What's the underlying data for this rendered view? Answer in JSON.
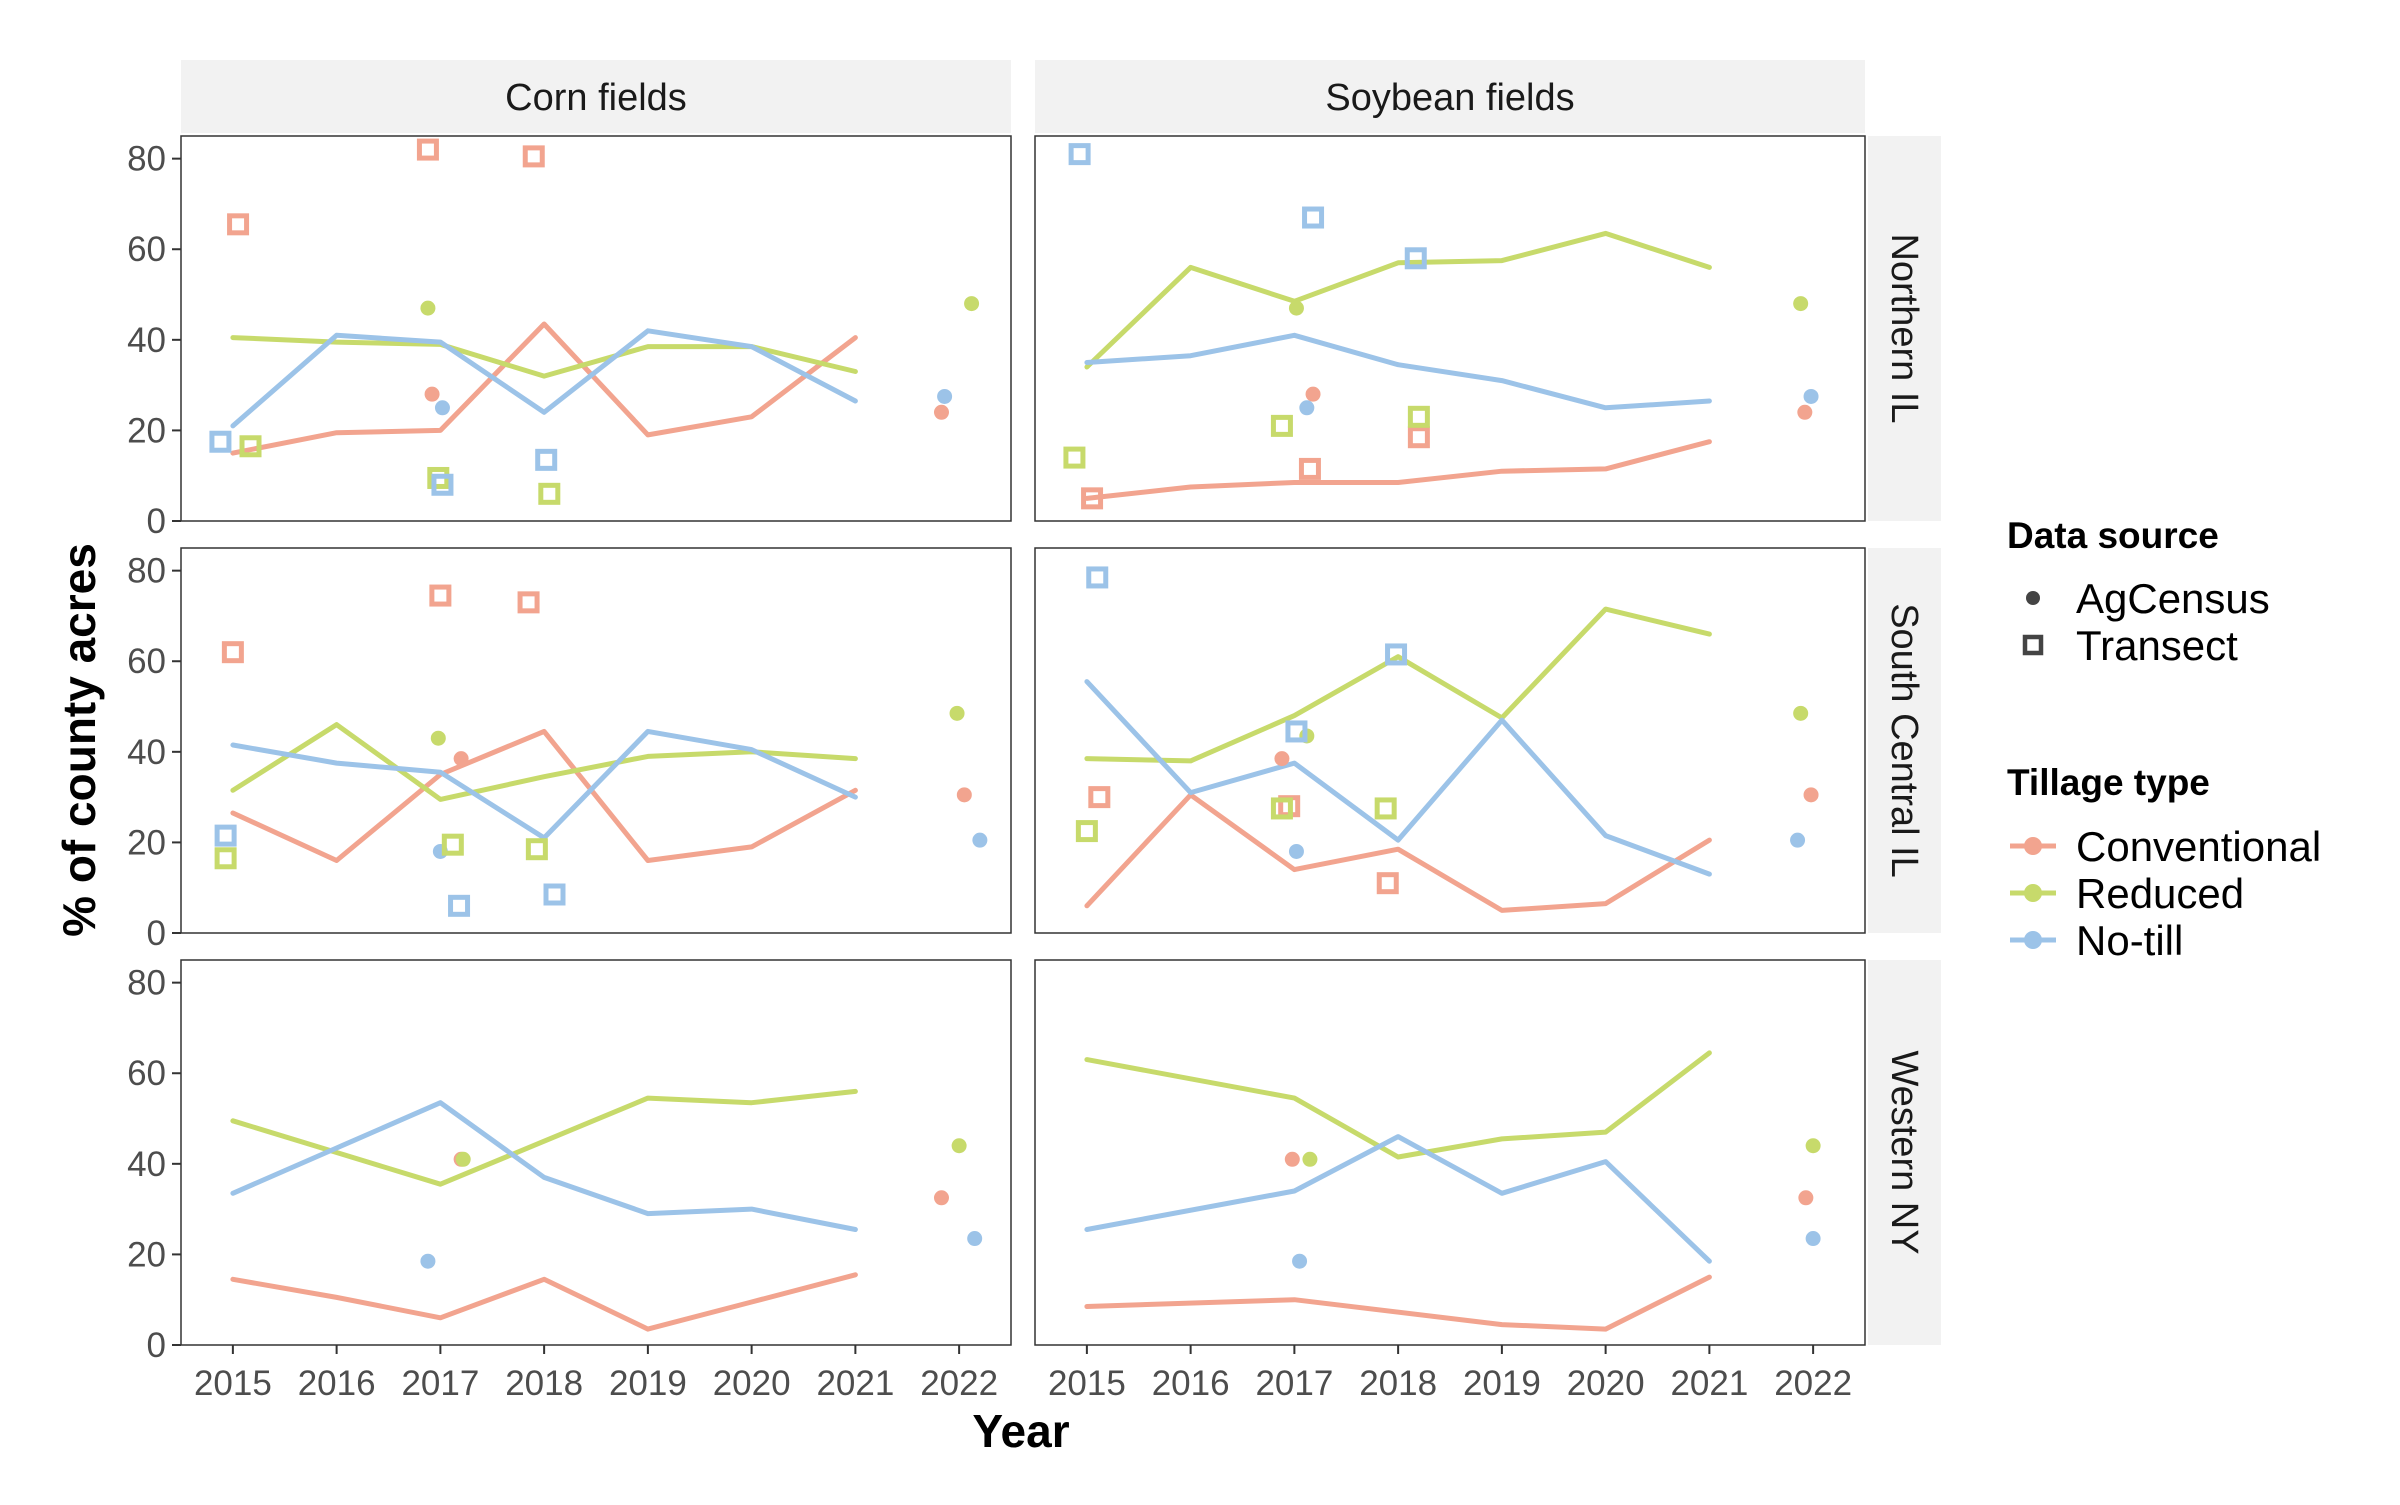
{
  "colors": {
    "Conventional": "#F2A48F",
    "Reduced": "#C7DA6B",
    "No-till": "#9CC3E8"
  },
  "chart_data": {
    "type": "line",
    "xlabel": "Year",
    "ylabel": "% of county acres",
    "ylim": [
      0,
      85
    ],
    "y_ticks": [
      "0",
      "20",
      "40",
      "60",
      "80"
    ],
    "x_ticks": [
      "2015",
      "2016",
      "2017",
      "2018",
      "2019",
      "2020",
      "2021",
      "2022"
    ],
    "columns": [
      "Corn fields",
      "Soybean fields"
    ],
    "rows": [
      "Northern IL",
      "South Central IL",
      "Western NY"
    ],
    "legend": {
      "position": "right",
      "source_title": "Data source",
      "source_items": [
        "AgCensus",
        "Transect"
      ],
      "tillage_title": "Tillage type",
      "tillage_items": [
        "Conventional",
        "Reduced",
        "No-till"
      ]
    },
    "panels": [
      {
        "row": "Northern IL",
        "col": "Corn fields",
        "lines": {
          "Conventional": [
            [
              2015,
              15
            ],
            [
              2016,
              19.5
            ],
            [
              2017,
              20
            ],
            [
              2018,
              43.5
            ],
            [
              2019,
              19
            ],
            [
              2020,
              23
            ],
            [
              2021,
              40.5
            ]
          ],
          "Reduced": [
            [
              2015,
              40.5
            ],
            [
              2016,
              39.5
            ],
            [
              2017,
              39
            ],
            [
              2018,
              32
            ],
            [
              2019,
              38.5
            ],
            [
              2020,
              38.5
            ],
            [
              2021,
              33
            ]
          ],
          "No-till": [
            [
              2015,
              21
            ],
            [
              2016,
              41
            ],
            [
              2017,
              39.5
            ],
            [
              2018,
              24
            ],
            [
              2019,
              42
            ],
            [
              2020,
              38.5
            ],
            [
              2021,
              26.5
            ]
          ]
        },
        "agcensus": [
          {
            "type": "Conventional",
            "x": 2016.92,
            "y": 28
          },
          {
            "type": "Reduced",
            "x": 2016.88,
            "y": 47
          },
          {
            "type": "No-till",
            "x": 2017.02,
            "y": 25
          },
          {
            "type": "Conventional",
            "x": 2021.83,
            "y": 24
          },
          {
            "type": "Reduced",
            "x": 2022.12,
            "y": 48
          },
          {
            "type": "No-till",
            "x": 2021.86,
            "y": 27.5
          }
        ],
        "transect": [
          {
            "type": "Conventional",
            "x": 2015.05,
            "y": 65.5
          },
          {
            "type": "Reduced",
            "x": 2015.17,
            "y": 16.5
          },
          {
            "type": "No-till",
            "x": 2014.88,
            "y": 17.5
          },
          {
            "type": "Conventional",
            "x": 2016.88,
            "y": 82
          },
          {
            "type": "Reduced",
            "x": 2016.98,
            "y": 9.5
          },
          {
            "type": "No-till",
            "x": 2017.02,
            "y": 8
          },
          {
            "type": "Conventional",
            "x": 2017.9,
            "y": 80.5
          },
          {
            "type": "Reduced",
            "x": 2018.05,
            "y": 6
          },
          {
            "type": "No-till",
            "x": 2018.02,
            "y": 13.5
          }
        ]
      },
      {
        "row": "Northern IL",
        "col": "Soybean fields",
        "lines": {
          "Conventional": [
            [
              2015,
              5
            ],
            [
              2016,
              7.5
            ],
            [
              2017,
              8.5
            ],
            [
              2018,
              8.5
            ],
            [
              2019,
              11
            ],
            [
              2020,
              11.5
            ],
            [
              2021,
              17.5
            ]
          ],
          "Reduced": [
            [
              2015,
              34
            ],
            [
              2016,
              56
            ],
            [
              2017,
              48.5
            ],
            [
              2018,
              57
            ],
            [
              2019,
              57.5
            ],
            [
              2020,
              63.5
            ],
            [
              2021,
              56
            ]
          ],
          "No-till": [
            [
              2015,
              35
            ],
            [
              2016,
              36.5
            ],
            [
              2017,
              41
            ],
            [
              2018,
              34.5
            ],
            [
              2019,
              31
            ],
            [
              2020,
              25
            ],
            [
              2021,
              26.5
            ]
          ]
        },
        "agcensus": [
          {
            "type": "Conventional",
            "x": 2017.18,
            "y": 28
          },
          {
            "type": "Reduced",
            "x": 2017.02,
            "y": 47
          },
          {
            "type": "No-till",
            "x": 2017.12,
            "y": 25
          },
          {
            "type": "Conventional",
            "x": 2021.92,
            "y": 24
          },
          {
            "type": "Reduced",
            "x": 2021.88,
            "y": 48
          },
          {
            "type": "No-till",
            "x": 2021.98,
            "y": 27.5
          }
        ],
        "transect": [
          {
            "type": "Conventional",
            "x": 2015.05,
            "y": 5
          },
          {
            "type": "Reduced",
            "x": 2014.88,
            "y": 14
          },
          {
            "type": "No-till",
            "x": 2014.93,
            "y": 81
          },
          {
            "type": "Conventional",
            "x": 2017.15,
            "y": 11.5
          },
          {
            "type": "Reduced",
            "x": 2016.88,
            "y": 21
          },
          {
            "type": "No-till",
            "x": 2017.18,
            "y": 67
          },
          {
            "type": "Conventional",
            "x": 2018.2,
            "y": 18.5
          },
          {
            "type": "Reduced",
            "x": 2018.2,
            "y": 23
          },
          {
            "type": "No-till",
            "x": 2018.17,
            "y": 58
          }
        ]
      },
      {
        "row": "South Central IL",
        "col": "Corn fields",
        "lines": {
          "Conventional": [
            [
              2015,
              26.5
            ],
            [
              2016,
              16
            ],
            [
              2017,
              35
            ],
            [
              2018,
              44.5
            ],
            [
              2019,
              16
            ],
            [
              2020,
              19
            ],
            [
              2021,
              31.5
            ]
          ],
          "Reduced": [
            [
              2015,
              31.5
            ],
            [
              2016,
              46
            ],
            [
              2017,
              29.5
            ],
            [
              2018,
              34.5
            ],
            [
              2019,
              39
            ],
            [
              2020,
              40
            ],
            [
              2021,
              38.5
            ]
          ],
          "No-till": [
            [
              2015,
              41.5
            ],
            [
              2016,
              37.5
            ],
            [
              2017,
              35.5
            ],
            [
              2018,
              21
            ],
            [
              2019,
              44.5
            ],
            [
              2020,
              40.5
            ],
            [
              2021,
              30
            ]
          ]
        },
        "agcensus": [
          {
            "type": "Conventional",
            "x": 2017.2,
            "y": 38.5
          },
          {
            "type": "Reduced",
            "x": 2016.98,
            "y": 43
          },
          {
            "type": "No-till",
            "x": 2017.0,
            "y": 18
          },
          {
            "type": "Conventional",
            "x": 2022.05,
            "y": 30.5
          },
          {
            "type": "Reduced",
            "x": 2021.98,
            "y": 48.5
          },
          {
            "type": "No-till",
            "x": 2022.2,
            "y": 20.5
          }
        ],
        "transect": [
          {
            "type": "Conventional",
            "x": 2015.0,
            "y": 62
          },
          {
            "type": "Reduced",
            "x": 2014.93,
            "y": 16.5
          },
          {
            "type": "No-till",
            "x": 2014.93,
            "y": 21.5
          },
          {
            "type": "Conventional",
            "x": 2017.0,
            "y": 74.5
          },
          {
            "type": "Reduced",
            "x": 2017.12,
            "y": 19.5
          },
          {
            "type": "No-till",
            "x": 2017.18,
            "y": 6
          },
          {
            "type": "Conventional",
            "x": 2017.85,
            "y": 73
          },
          {
            "type": "Reduced",
            "x": 2017.93,
            "y": 18.5
          },
          {
            "type": "No-till",
            "x": 2018.1,
            "y": 8.5
          }
        ]
      },
      {
        "row": "South Central IL",
        "col": "Soybean fields",
        "lines": {
          "Conventional": [
            [
              2015,
              6
            ],
            [
              2016,
              30.5
            ],
            [
              2017,
              14
            ],
            [
              2018,
              18.5
            ],
            [
              2019,
              5
            ],
            [
              2020,
              6.5
            ],
            [
              2021,
              20.5
            ]
          ],
          "Reduced": [
            [
              2015,
              38.5
            ],
            [
              2016,
              38
            ],
            [
              2017,
              48
            ],
            [
              2018,
              61
            ],
            [
              2019,
              47.5
            ],
            [
              2020,
              71.5
            ],
            [
              2021,
              66
            ]
          ],
          "No-till": [
            [
              2015,
              55.5
            ],
            [
              2016,
              31
            ],
            [
              2017,
              37.5
            ],
            [
              2018,
              20.5
            ],
            [
              2019,
              47
            ],
            [
              2020,
              21.5
            ],
            [
              2021,
              13
            ]
          ]
        },
        "agcensus": [
          {
            "type": "Conventional",
            "x": 2016.88,
            "y": 38.5
          },
          {
            "type": "Reduced",
            "x": 2017.12,
            "y": 43.5
          },
          {
            "type": "No-till",
            "x": 2017.02,
            "y": 18
          },
          {
            "type": "Conventional",
            "x": 2021.98,
            "y": 30.5
          },
          {
            "type": "Reduced",
            "x": 2021.88,
            "y": 48.5
          },
          {
            "type": "No-till",
            "x": 2021.85,
            "y": 20.5
          }
        ],
        "transect": [
          {
            "type": "Conventional",
            "x": 2015.12,
            "y": 30
          },
          {
            "type": "Reduced",
            "x": 2015.0,
            "y": 22.5
          },
          {
            "type": "No-till",
            "x": 2015.1,
            "y": 78.5
          },
          {
            "type": "Conventional",
            "x": 2016.95,
            "y": 28
          },
          {
            "type": "Reduced",
            "x": 2016.88,
            "y": 27.5
          },
          {
            "type": "No-till",
            "x": 2017.02,
            "y": 44.5
          },
          {
            "type": "Conventional",
            "x": 2017.9,
            "y": 11
          },
          {
            "type": "Reduced",
            "x": 2017.88,
            "y": 27.5
          },
          {
            "type": "No-till",
            "x": 2017.98,
            "y": 61.5
          }
        ]
      },
      {
        "row": "Western NY",
        "col": "Corn fields",
        "lines": {
          "Conventional": [
            [
              2015,
              14.5
            ],
            [
              2016,
              10.5
            ],
            [
              2017,
              6
            ],
            [
              2018,
              14.5
            ],
            [
              2019,
              3.5
            ],
            [
              2020,
              9.5
            ],
            [
              2021,
              15.5
            ]
          ],
          "Reduced": [
            [
              2015,
              49.5
            ],
            [
              2016,
              42.5
            ],
            [
              2017,
              35.5
            ],
            [
              2018,
              45
            ],
            [
              2019,
              54.5
            ],
            [
              2020,
              53.5
            ],
            [
              2021,
              56
            ]
          ],
          "No-till": [
            [
              2015,
              33.5
            ],
            [
              2016,
              43.5
            ],
            [
              2017,
              53.5
            ],
            [
              2018,
              37
            ],
            [
              2019,
              29
            ],
            [
              2020,
              30
            ],
            [
              2021,
              25.5
            ]
          ]
        },
        "agcensus": [
          {
            "type": "Conventional",
            "x": 2017.2,
            "y": 41
          },
          {
            "type": "Reduced",
            "x": 2017.22,
            "y": 41
          },
          {
            "type": "No-till",
            "x": 2016.88,
            "y": 18.5
          },
          {
            "type": "Conventional",
            "x": 2021.83,
            "y": 32.5
          },
          {
            "type": "Reduced",
            "x": 2022.0,
            "y": 44
          },
          {
            "type": "No-till",
            "x": 2022.15,
            "y": 23.5
          }
        ],
        "transect": []
      },
      {
        "row": "Western NY",
        "col": "Soybean fields",
        "lines": {
          "Conventional": [
            [
              2015,
              8.5
            ],
            [
              2017,
              10
            ],
            [
              2019,
              4.5
            ],
            [
              2020,
              3.5
            ],
            [
              2021,
              15
            ]
          ],
          "Reduced": [
            [
              2015,
              63
            ],
            [
              2017,
              54.5
            ],
            [
              2018,
              41.5
            ],
            [
              2019,
              45.5
            ],
            [
              2020,
              47
            ],
            [
              2021,
              64.5
            ]
          ],
          "No-till": [
            [
              2015,
              25.5
            ],
            [
              2017,
              34
            ],
            [
              2018,
              46
            ],
            [
              2019,
              33.5
            ],
            [
              2020,
              40.5
            ],
            [
              2021,
              18.5
            ]
          ]
        },
        "agcensus": [
          {
            "type": "Conventional",
            "x": 2016.98,
            "y": 41
          },
          {
            "type": "Reduced",
            "x": 2017.15,
            "y": 41
          },
          {
            "type": "No-till",
            "x": 2017.05,
            "y": 18.5
          },
          {
            "type": "Conventional",
            "x": 2021.93,
            "y": 32.5
          },
          {
            "type": "Reduced",
            "x": 2022.0,
            "y": 44
          },
          {
            "type": "No-till",
            "x": 2022.0,
            "y": 23.5
          }
        ],
        "transect": []
      }
    ]
  }
}
